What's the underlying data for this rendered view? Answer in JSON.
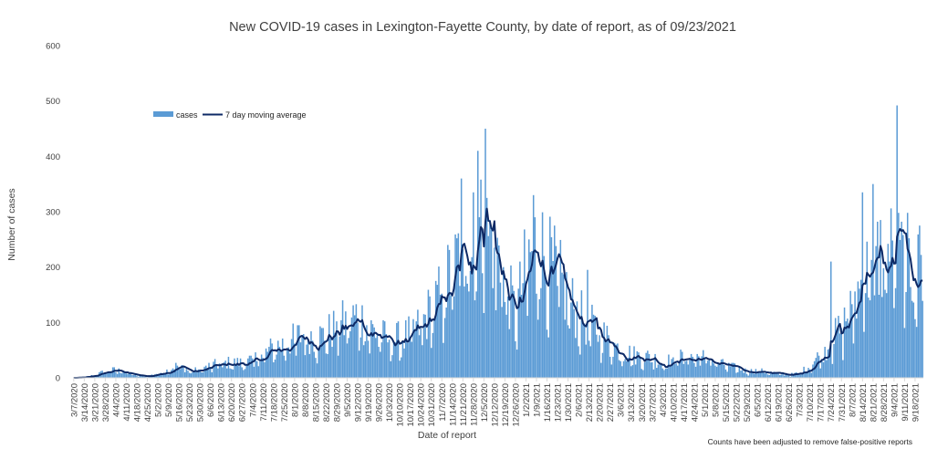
{
  "chart_data": {
    "type": "bar",
    "title": "New COVID-19 cases in Lexington-Fayette County, by date of report, as of 09/23/2021",
    "xlabel": "Date of report",
    "ylabel": "Number of cases",
    "ylim": [
      0,
      600
    ],
    "yticks": [
      0,
      100,
      200,
      300,
      400,
      500,
      600
    ],
    "grid": false,
    "legend_position": "upper-left",
    "footnote": "Counts have been adjusted to remove false-positive reports",
    "x_start": "3/7/2020",
    "x_end": "9/23/2021",
    "x_tick_labels": [
      "3/7/2020",
      "3/14/2020",
      "3/21/2020",
      "3/28/2020",
      "4/4/2020",
      "4/11/2020",
      "4/18/2020",
      "4/25/2020",
      "5/2/2020",
      "5/9/2020",
      "5/16/2020",
      "5/23/2020",
      "5/30/2020",
      "6/6/2020",
      "6/13/2020",
      "6/20/2020",
      "6/27/2020",
      "7/4/2020",
      "7/11/2020",
      "7/18/2020",
      "7/25/2020",
      "8/1/2020",
      "8/8/2020",
      "8/15/2020",
      "8/22/2020",
      "8/29/2020",
      "9/5/2020",
      "9/12/2020",
      "9/19/2020",
      "9/26/2020",
      "10/3/2020",
      "10/10/2020",
      "10/17/2020",
      "10/24/2020",
      "10/31/2020",
      "11/7/2020",
      "11/14/2020",
      "11/21/2020",
      "11/28/2020",
      "12/5/2020",
      "12/12/2020",
      "12/19/2020",
      "12/26/2020",
      "1/2/2021",
      "1/9/2021",
      "1/16/2021",
      "1/23/2021",
      "1/30/2021",
      "2/6/2021",
      "2/13/2021",
      "2/20/2021",
      "2/27/2021",
      "3/6/2021",
      "3/13/2021",
      "3/20/2021",
      "3/27/2021",
      "4/3/2021",
      "4/10/2021",
      "4/17/2021",
      "4/24/2021",
      "5/1/2021",
      "5/8/2021",
      "5/15/2021",
      "5/22/2021",
      "5/29/2021",
      "6/5/2021",
      "6/12/2021",
      "6/19/2021",
      "6/26/2021",
      "7/3/2021",
      "7/10/2021",
      "7/17/2021",
      "7/24/2021",
      "7/31/2021",
      "8/7/2021",
      "8/14/2021",
      "8/21/2021",
      "8/28/2021",
      "9/4/2021",
      "9/11/2021",
      "9/18/2021"
    ],
    "weekly_average_anchors": [
      [
        "3/7/2020",
        0
      ],
      [
        "3/14/2020",
        1
      ],
      [
        "3/21/2020",
        5
      ],
      [
        "3/28/2020",
        12
      ],
      [
        "4/4/2020",
        15
      ],
      [
        "4/11/2020",
        10
      ],
      [
        "4/18/2020",
        4
      ],
      [
        "4/25/2020",
        3
      ],
      [
        "5/2/2020",
        8
      ],
      [
        "5/9/2020",
        14
      ],
      [
        "5/16/2020",
        24
      ],
      [
        "5/23/2020",
        12
      ],
      [
        "5/30/2020",
        15
      ],
      [
        "6/6/2020",
        22
      ],
      [
        "6/13/2020",
        25
      ],
      [
        "6/20/2020",
        28
      ],
      [
        "6/27/2020",
        27
      ],
      [
        "7/4/2020",
        32
      ],
      [
        "7/11/2020",
        42
      ],
      [
        "7/18/2020",
        55
      ],
      [
        "7/25/2020",
        62
      ],
      [
        "8/1/2020",
        70
      ],
      [
        "8/8/2020",
        82
      ],
      [
        "8/15/2020",
        72
      ],
      [
        "8/22/2020",
        78
      ],
      [
        "8/29/2020",
        95
      ],
      [
        "9/5/2020",
        100
      ],
      [
        "9/12/2020",
        115
      ],
      [
        "9/19/2020",
        92
      ],
      [
        "9/26/2020",
        80
      ],
      [
        "10/3/2020",
        68
      ],
      [
        "10/10/2020",
        72
      ],
      [
        "10/17/2020",
        80
      ],
      [
        "10/24/2020",
        95
      ],
      [
        "10/31/2020",
        125
      ],
      [
        "11/7/2020",
        150
      ],
      [
        "11/14/2020",
        195
      ],
      [
        "11/21/2020",
        240
      ],
      [
        "11/28/2020",
        255
      ],
      [
        "12/5/2020",
        265
      ],
      [
        "12/12/2020",
        245
      ],
      [
        "12/19/2020",
        175
      ],
      [
        "12/26/2020",
        115
      ],
      [
        "1/2/2021",
        200
      ],
      [
        "1/9/2021",
        250
      ],
      [
        "1/16/2021",
        210
      ],
      [
        "1/23/2021",
        185
      ],
      [
        "1/30/2021",
        145
      ],
      [
        "2/6/2021",
        115
      ],
      [
        "2/13/2021",
        95
      ],
      [
        "2/20/2021",
        85
      ],
      [
        "2/27/2021",
        65
      ],
      [
        "3/6/2021",
        50
      ],
      [
        "3/13/2021",
        43
      ],
      [
        "3/20/2021",
        38
      ],
      [
        "3/27/2021",
        38
      ],
      [
        "4/3/2021",
        25
      ],
      [
        "4/10/2021",
        35
      ],
      [
        "4/17/2021",
        38
      ],
      [
        "4/24/2021",
        38
      ],
      [
        "5/1/2021",
        37
      ],
      [
        "5/8/2021",
        30
      ],
      [
        "5/15/2021",
        22
      ],
      [
        "5/22/2021",
        18
      ],
      [
        "5/29/2021",
        12
      ],
      [
        "6/5/2021",
        13
      ],
      [
        "6/12/2021",
        10
      ],
      [
        "6/19/2021",
        8
      ],
      [
        "6/26/2021",
        6
      ],
      [
        "7/3/2021",
        8
      ],
      [
        "7/10/2021",
        22
      ],
      [
        "7/17/2021",
        42
      ],
      [
        "7/24/2021",
        65
      ],
      [
        "7/31/2021",
        90
      ],
      [
        "8/7/2021",
        130
      ],
      [
        "8/14/2021",
        175
      ],
      [
        "8/21/2021",
        205
      ],
      [
        "8/28/2021",
        230
      ],
      [
        "9/4/2021",
        225
      ],
      [
        "9/11/2021",
        210
      ],
      [
        "9/18/2021",
        195
      ],
      [
        "9/23/2021",
        185
      ]
    ],
    "series": [
      {
        "name": "cases",
        "type": "bar",
        "color": "#5b9bd5"
      },
      {
        "name": "7 day moving average",
        "type": "line",
        "color": "#0d2a66"
      }
    ],
    "notable_daily_values": [
      [
        "11/20/2020",
        360
      ],
      [
        "11/28/2020",
        335
      ],
      [
        "12/1/2020",
        410
      ],
      [
        "12/6/2020",
        450
      ],
      [
        "1/7/2021",
        330
      ],
      [
        "2/12/2021",
        195
      ],
      [
        "7/24/2021",
        210
      ],
      [
        "8/14/2021",
        335
      ],
      [
        "8/21/2021",
        350
      ],
      [
        "9/6/2021",
        492
      ],
      [
        "9/21/2021",
        275
      ]
    ]
  }
}
